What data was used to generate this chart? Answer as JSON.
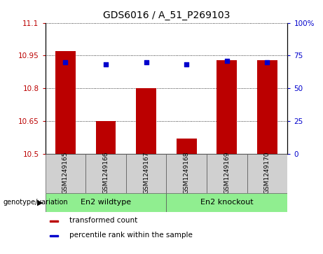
{
  "title": "GDS6016 / A_51_P269103",
  "samples": [
    "GSM1249165",
    "GSM1249166",
    "GSM1249167",
    "GSM1249168",
    "GSM1249169",
    "GSM1249170"
  ],
  "bar_values": [
    10.97,
    10.65,
    10.8,
    10.57,
    10.93,
    10.93
  ],
  "percentile_values": [
    70,
    68,
    70,
    68,
    71,
    70
  ],
  "ylim_left": [
    10.5,
    11.1
  ],
  "ylim_right": [
    0,
    100
  ],
  "yticks_left": [
    10.5,
    10.65,
    10.8,
    10.95,
    11.1
  ],
  "yticks_right": [
    0,
    25,
    50,
    75,
    100
  ],
  "ytick_labels_left": [
    "10.5",
    "10.65",
    "10.8",
    "10.95",
    "11.1"
  ],
  "ytick_labels_right": [
    "0",
    "25",
    "50",
    "75",
    "100%"
  ],
  "bar_color": "#bb0000",
  "dot_color": "#0000cc",
  "bar_width": 0.5,
  "groups": [
    {
      "label": "En2 wildtype",
      "indices": [
        0,
        1,
        2
      ],
      "color": "#90ee90"
    },
    {
      "label": "En2 knockout",
      "indices": [
        3,
        4,
        5
      ],
      "color": "#90ee90"
    }
  ],
  "group_label_prefix": "genotype/variation",
  "sample_box_color": "#d0d0d0",
  "legend_items": [
    {
      "color": "#bb0000",
      "label": "transformed count"
    },
    {
      "color": "#0000cc",
      "label": "percentile rank within the sample"
    }
  ],
  "title_fontsize": 10,
  "tick_fontsize": 7.5,
  "sample_fontsize": 6.5,
  "group_fontsize": 8,
  "legend_fontsize": 7.5
}
